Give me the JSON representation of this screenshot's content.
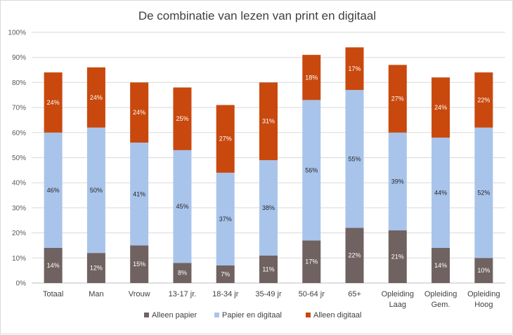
{
  "chart_data": {
    "type": "bar",
    "stacked": true,
    "title": "De combinatie van lezen van print en digitaal",
    "xlabel": "",
    "ylabel": "",
    "ylim": [
      0,
      100
    ],
    "ytick_labels": [
      "0%",
      "10%",
      "20%",
      "30%",
      "40%",
      "50%",
      "60%",
      "70%",
      "80%",
      "90%",
      "100%"
    ],
    "categories": [
      [
        "Totaal"
      ],
      [
        "Man"
      ],
      [
        "Vrouw"
      ],
      [
        "13-17 jr."
      ],
      [
        "18-34 jr"
      ],
      [
        "35-49 jr"
      ],
      [
        "50-64 jr"
      ],
      [
        "65+"
      ],
      [
        "Opleiding",
        "Laag"
      ],
      [
        "Opleiding",
        "Gem."
      ],
      [
        "Opleiding",
        "Hoog"
      ]
    ],
    "series": [
      {
        "name": "Alleen papier",
        "color": "#6f6260",
        "label_color": "#ffffff",
        "values": [
          14,
          12,
          15,
          8,
          7,
          11,
          17,
          22,
          21,
          14,
          10
        ],
        "labels": [
          "14%",
          "12%",
          "15%",
          "8%",
          "7%",
          "11%",
          "17%",
          "22%",
          "21%",
          "14%",
          "10%"
        ]
      },
      {
        "name": "Papier en digitaal",
        "color": "#a9c4eb",
        "label_color": "#262626",
        "values": [
          46,
          50,
          41,
          45,
          37,
          38,
          56,
          55,
          39,
          44,
          52
        ],
        "labels": [
          "46%",
          "50%",
          "41%",
          "45%",
          "37%",
          "38%",
          "56%",
          "55%",
          "39%",
          "44%",
          "52%"
        ]
      },
      {
        "name": "Alleen digitaal",
        "color": "#c9480d",
        "label_color": "#ffffff",
        "values": [
          24,
          24,
          24,
          25,
          27,
          31,
          18,
          17,
          27,
          24,
          22
        ],
        "labels": [
          "24%",
          "24%",
          "24%",
          "25%",
          "27%",
          "31%",
          "18%",
          "17%",
          "27%",
          "24%",
          "22%"
        ]
      }
    ],
    "legend_position": "bottom",
    "grid": true
  }
}
